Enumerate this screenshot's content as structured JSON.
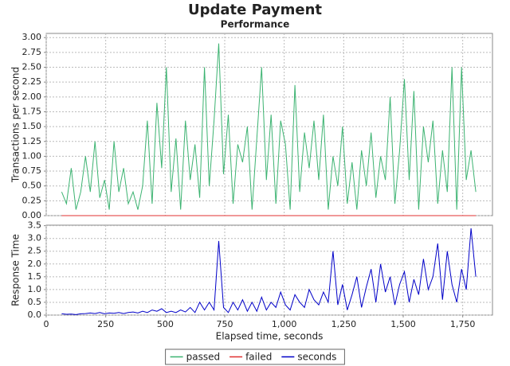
{
  "chart_data": [
    {
      "type": "line",
      "title": "Update Payment",
      "subtitle": "Performance",
      "ylabel": "Transactions per second",
      "x": [
        65,
        85,
        105,
        125,
        145,
        165,
        185,
        205,
        225,
        245,
        265,
        285,
        305,
        325,
        345,
        365,
        385,
        405,
        425,
        445,
        465,
        485,
        505,
        525,
        545,
        565,
        585,
        605,
        625,
        645,
        665,
        685,
        705,
        725,
        745,
        765,
        785,
        805,
        825,
        845,
        865,
        885,
        905,
        925,
        945,
        965,
        985,
        1005,
        1025,
        1045,
        1065,
        1085,
        1105,
        1125,
        1145,
        1165,
        1185,
        1205,
        1225,
        1245,
        1265,
        1285,
        1305,
        1325,
        1345,
        1365,
        1385,
        1405,
        1425,
        1445,
        1465,
        1485,
        1505,
        1525,
        1545,
        1565,
        1585,
        1605,
        1625,
        1645,
        1665,
        1685,
        1705,
        1725,
        1745,
        1765,
        1785,
        1805
      ],
      "series": [
        {
          "name": "passed",
          "color": "#3cb371",
          "values": [
            0.4,
            0.2,
            0.8,
            0.1,
            0.4,
            1.0,
            0.4,
            1.25,
            0.3,
            0.6,
            0.1,
            1.25,
            0.4,
            0.8,
            0.2,
            0.4,
            0.1,
            0.5,
            1.6,
            0.2,
            1.9,
            0.8,
            2.5,
            0.4,
            1.3,
            0.1,
            1.6,
            0.6,
            1.2,
            0.3,
            2.5,
            0.5,
            1.6,
            2.9,
            0.7,
            1.7,
            0.2,
            1.2,
            0.9,
            1.5,
            0.1,
            1.3,
            2.5,
            0.6,
            1.7,
            0.2,
            1.6,
            1.2,
            0.1,
            2.2,
            0.4,
            1.4,
            0.8,
            1.6,
            0.6,
            1.7,
            0.1,
            1.0,
            0.5,
            1.5,
            0.2,
            0.9,
            0.1,
            1.1,
            0.5,
            1.4,
            0.3,
            1.0,
            0.6,
            2.0,
            0.2,
            1.1,
            2.3,
            0.6,
            2.1,
            0.1,
            1.5,
            0.9,
            1.6,
            0.2,
            1.1,
            0.4,
            2.5,
            0.1,
            2.5,
            0.6,
            1.1,
            0.4
          ]
        },
        {
          "name": "failed",
          "color": "#e03030",
          "values": [
            0,
            0,
            0,
            0,
            0,
            0,
            0,
            0,
            0,
            0,
            0,
            0,
            0,
            0,
            0,
            0,
            0,
            0,
            0,
            0,
            0,
            0,
            0,
            0,
            0,
            0,
            0,
            0,
            0,
            0,
            0,
            0,
            0,
            0,
            0,
            0,
            0,
            0,
            0,
            0,
            0,
            0,
            0,
            0,
            0,
            0,
            0,
            0,
            0,
            0,
            0,
            0,
            0,
            0,
            0,
            0,
            0,
            0,
            0,
            0,
            0,
            0,
            0,
            0,
            0,
            0,
            0,
            0,
            0,
            0,
            0,
            0,
            0,
            0,
            0,
            0,
            0,
            0,
            0,
            0,
            0,
            0,
            0,
            0,
            0,
            0,
            0,
            0
          ]
        }
      ],
      "xlim": [
        0,
        1875
      ],
      "ylim": [
        0,
        3.07
      ],
      "yticks": [
        {
          "value": 0,
          "label": "0.00"
        },
        {
          "value": 0.25,
          "label": "0.25"
        },
        {
          "value": 0.5,
          "label": "0.50"
        },
        {
          "value": 0.75,
          "label": "0.75"
        },
        {
          "value": 1,
          "label": "1.00"
        },
        {
          "value": 1.25,
          "label": "1.25"
        },
        {
          "value": 1.5,
          "label": "1.50"
        },
        {
          "value": 1.75,
          "label": "1.75"
        },
        {
          "value": 2,
          "label": "2.00"
        },
        {
          "value": 2.25,
          "label": "2.25"
        },
        {
          "value": 2.5,
          "label": "2.50"
        },
        {
          "value": 2.75,
          "label": "2.75"
        },
        {
          "value": 3,
          "label": "3.00"
        }
      ],
      "grid": true
    },
    {
      "type": "line",
      "ylabel": "Response Time",
      "xlabel": "Elapsed time, seconds",
      "x": [
        65,
        85,
        105,
        125,
        145,
        165,
        185,
        205,
        225,
        245,
        265,
        285,
        305,
        325,
        345,
        365,
        385,
        405,
        425,
        445,
        465,
        485,
        505,
        525,
        545,
        565,
        585,
        605,
        625,
        645,
        665,
        685,
        705,
        725,
        745,
        765,
        785,
        805,
        825,
        845,
        865,
        885,
        905,
        925,
        945,
        965,
        985,
        1005,
        1025,
        1045,
        1065,
        1085,
        1105,
        1125,
        1145,
        1165,
        1185,
        1205,
        1225,
        1245,
        1265,
        1285,
        1305,
        1325,
        1345,
        1365,
        1385,
        1405,
        1425,
        1445,
        1465,
        1485,
        1505,
        1525,
        1545,
        1565,
        1585,
        1605,
        1625,
        1645,
        1665,
        1685,
        1705,
        1725,
        1745,
        1765,
        1785,
        1805
      ],
      "series": [
        {
          "name": "seconds",
          "color": "#0000c8",
          "values": [
            0.05,
            0.03,
            0.04,
            0.02,
            0.05,
            0.06,
            0.08,
            0.06,
            0.1,
            0.05,
            0.08,
            0.07,
            0.1,
            0.06,
            0.1,
            0.12,
            0.08,
            0.15,
            0.1,
            0.2,
            0.15,
            0.25,
            0.1,
            0.15,
            0.1,
            0.2,
            0.12,
            0.3,
            0.1,
            0.5,
            0.2,
            0.5,
            0.2,
            2.9,
            0.3,
            0.1,
            0.5,
            0.2,
            0.6,
            0.15,
            0.5,
            0.15,
            0.7,
            0.2,
            0.5,
            0.3,
            0.9,
            0.4,
            0.2,
            0.8,
            0.5,
            0.3,
            1.0,
            0.6,
            0.4,
            0.9,
            0.5,
            2.5,
            0.4,
            1.2,
            0.2,
            0.8,
            1.5,
            0.3,
            1.1,
            1.8,
            0.5,
            2.0,
            0.9,
            1.5,
            0.4,
            1.2,
            1.7,
            0.5,
            1.4,
            0.8,
            2.2,
            1.0,
            1.5,
            2.8,
            0.6,
            2.5,
            1.2,
            0.5,
            1.8,
            1.0,
            3.4,
            1.5
          ]
        }
      ],
      "xlim": [
        0,
        1875
      ],
      "ylim": [
        0,
        3.52
      ],
      "xticks": [
        0,
        250,
        500,
        750,
        {
          "value": 1000,
          "label": "1,000"
        },
        {
          "value": 1250,
          "label": "1,250"
        },
        {
          "value": 1500,
          "label": "1,500"
        },
        {
          "value": 1750,
          "label": "1,750"
        }
      ],
      "yticks": [
        {
          "value": 0,
          "label": "0.0"
        },
        {
          "value": 0.5,
          "label": "0.5"
        },
        {
          "value": 1,
          "label": "1.0"
        },
        {
          "value": 1.5,
          "label": "1.5"
        },
        {
          "value": 2,
          "label": "2.0"
        },
        {
          "value": 2.5,
          "label": "2.5"
        },
        {
          "value": 3,
          "label": "3.0"
        },
        {
          "value": 3.5,
          "label": "3.5"
        }
      ],
      "grid": true
    }
  ]
}
